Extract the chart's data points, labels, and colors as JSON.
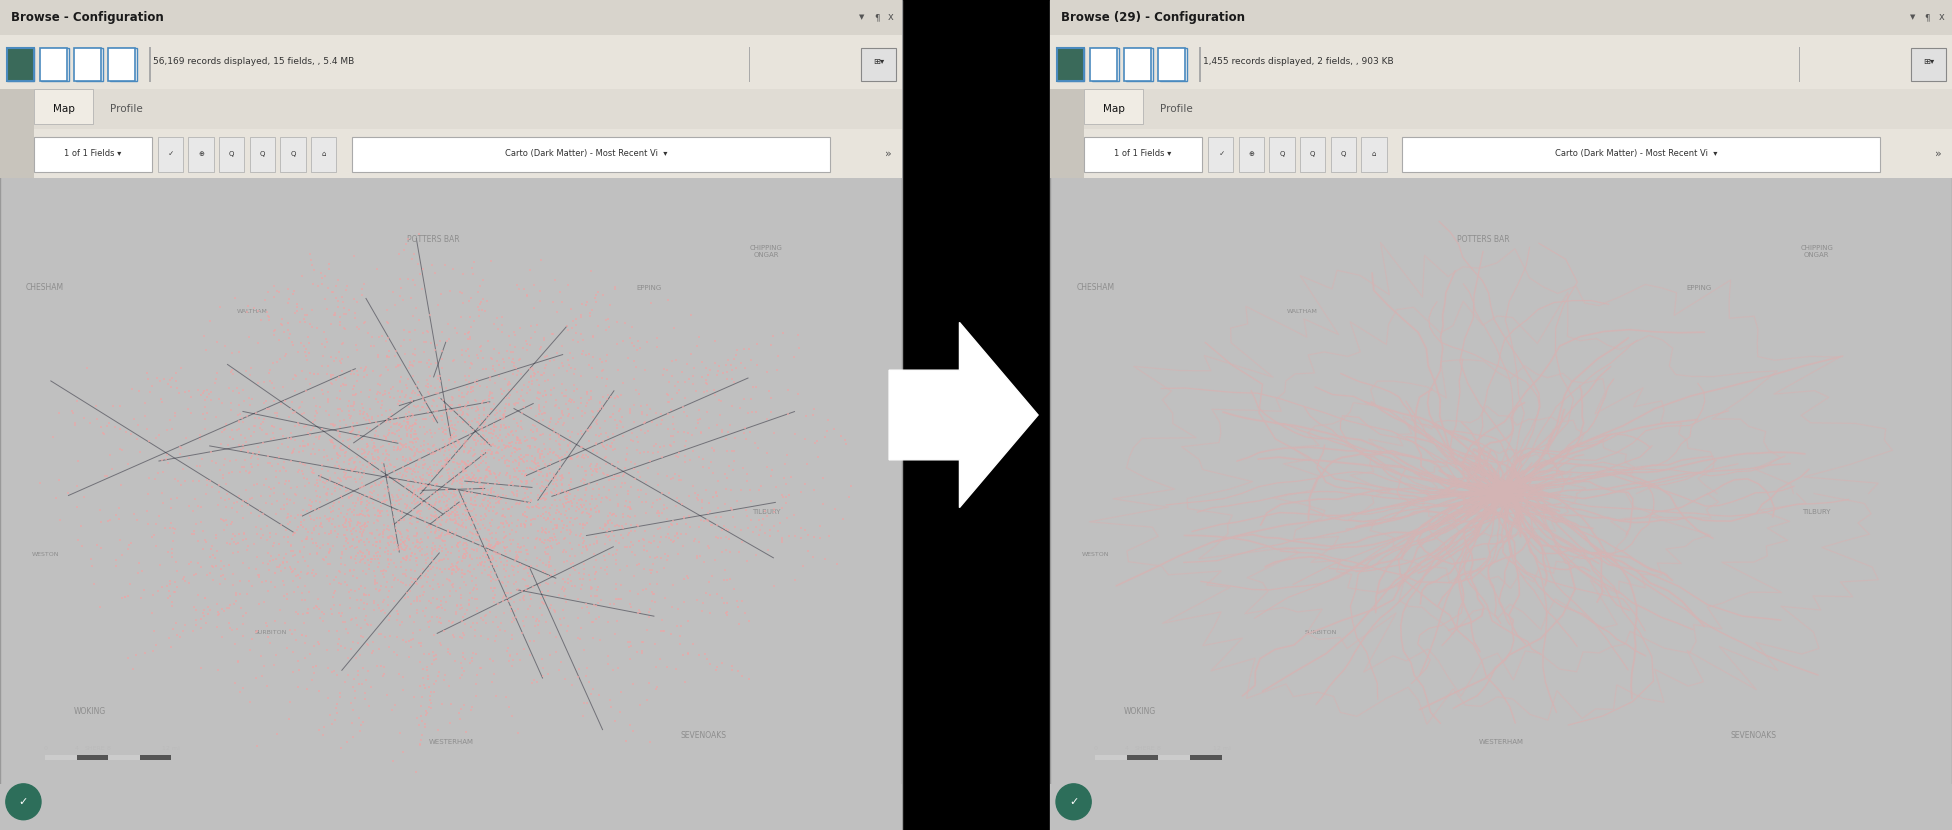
{
  "fig_width": 19.52,
  "fig_height": 8.3,
  "dpi": 100,
  "outer_bg": "#000000",
  "panel_frame_color": "#c0c0c0",
  "title_bar_color": "#d8d4cc",
  "title_bar_text_color": "#1a1a1a",
  "toolbar1_bg": "#e8e4dc",
  "toolbar2_bg": "#e8e4dc",
  "tab_bg": "#e0dcd4",
  "active_tab_bg": "#f0ece4",
  "icon_border_color": "#4a8abf",
  "icon_bg_color": "#5a9acf",
  "map_bg": "#0d0d14",
  "map_road_color": "#2a2a38",
  "point_color": "#e8a8a8",
  "line_color": "#d4b4b4",
  "scale_text_color": "#bbbbbb",
  "arrow_fill": "#ffffff",
  "window_edge_color": "#999999",
  "left_title": "Browse - Configuration",
  "right_title": "Browse (29) - Configuration",
  "left_info": "56,169 records displayed, 15 fields, , 5.4 MB",
  "right_info": "1,455 records displayed, 2 fields, , 903 KB",
  "bottom_icon_color": "#2d6e5a",
  "bottom_icon_check_color": "#3d8e6a",
  "sep_color": "#aaaaaa"
}
